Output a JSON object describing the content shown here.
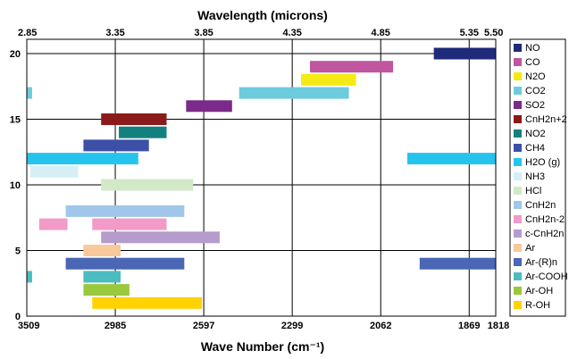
{
  "chart_data": {
    "type": "bar",
    "orientation": "horizontal-range",
    "title_top": "Wavelength (microns)",
    "xlabel_bottom": "Wave Number (cm⁻¹)",
    "ylabel": "",
    "x_range_microns": [
      2.85,
      5.5
    ],
    "y_range": [
      0,
      21
    ],
    "grid": true,
    "legend_placement": "right",
    "top_ticks": [
      {
        "value": 2.85,
        "label": "2.85"
      },
      {
        "value": 3.35,
        "label": "3.35"
      },
      {
        "value": 3.85,
        "label": "3.85"
      },
      {
        "value": 4.35,
        "label": "4.35"
      },
      {
        "value": 4.85,
        "label": "4.85"
      },
      {
        "value": 5.35,
        "label": "5.35"
      },
      {
        "value": 5.5,
        "label": "5.50"
      }
    ],
    "bottom_ticks": [
      {
        "value": 2.85,
        "label": "3509"
      },
      {
        "value": 3.35,
        "label": "2985"
      },
      {
        "value": 3.85,
        "label": "2597"
      },
      {
        "value": 4.35,
        "label": "2299"
      },
      {
        "value": 4.85,
        "label": "2062"
      },
      {
        "value": 5.35,
        "label": "1869"
      },
      {
        "value": 5.5,
        "label": "1818"
      }
    ],
    "y_ticks": [
      {
        "value": 0,
        "label": "0"
      },
      {
        "value": 5,
        "label": "5"
      },
      {
        "value": 10,
        "label": "10"
      },
      {
        "value": 15,
        "label": "15"
      },
      {
        "value": 20,
        "label": "20"
      }
    ],
    "series": [
      {
        "name": "NO",
        "color": "#1f2a7a",
        "y": 20,
        "ranges": [
          [
            5.15,
            5.5
          ]
        ]
      },
      {
        "name": "CO",
        "color": "#c0569f",
        "y": 19,
        "ranges": [
          [
            4.45,
            4.92
          ]
        ]
      },
      {
        "name": "N2O",
        "color": "#f5ea14",
        "y": 18,
        "ranges": [
          [
            4.4,
            4.71
          ]
        ]
      },
      {
        "name": "CO2",
        "color": "#6ccbdc",
        "y": 17,
        "ranges": [
          [
            2.85,
            2.88
          ],
          [
            4.05,
            4.67
          ]
        ]
      },
      {
        "name": "SO2",
        "color": "#7b2a8a",
        "y": 16,
        "ranges": [
          [
            3.75,
            4.01
          ]
        ]
      },
      {
        "name": "CnH2n+2",
        "color": "#8b1a1a",
        "y": 15,
        "ranges": [
          [
            3.27,
            3.64
          ]
        ]
      },
      {
        "name": "NO2",
        "color": "#138080",
        "y": 14,
        "ranges": [
          [
            3.37,
            3.64
          ]
        ]
      },
      {
        "name": "CH4",
        "color": "#3d50a8",
        "y": 13,
        "ranges": [
          [
            3.17,
            3.54
          ]
        ]
      },
      {
        "name": "H2O (g)",
        "color": "#25c4ef",
        "y": 12,
        "ranges": [
          [
            2.85,
            3.48
          ],
          [
            5.0,
            5.5
          ]
        ]
      },
      {
        "name": "NH3",
        "color": "#d6eef6",
        "y": 11,
        "ranges": [
          [
            2.87,
            3.14
          ]
        ]
      },
      {
        "name": "HCl",
        "color": "#d3e8c6",
        "y": 10,
        "ranges": [
          [
            3.27,
            3.79
          ]
        ]
      },
      {
        "name": "CnH2n",
        "color": "#a0c7ea",
        "y": 8,
        "ranges": [
          [
            3.07,
            3.74
          ]
        ]
      },
      {
        "name": "CnH2n-2",
        "color": "#f29ac8",
        "y": 7,
        "ranges": [
          [
            2.92,
            3.08
          ],
          [
            3.22,
            3.64
          ]
        ]
      },
      {
        "name": "c-CnH2n",
        "color": "#b59ccc",
        "y": 6,
        "ranges": [
          [
            3.27,
            3.94
          ]
        ]
      },
      {
        "name": "Ar",
        "color": "#f7c99b",
        "y": 5,
        "ranges": [
          [
            3.17,
            3.38
          ]
        ]
      },
      {
        "name": "Ar-(R)n",
        "color": "#4a66b4",
        "y": 4,
        "ranges": [
          [
            3.07,
            3.74
          ],
          [
            5.07,
            5.5
          ]
        ]
      },
      {
        "name": "Ar-COOH",
        "color": "#4bbdc0",
        "y": 3,
        "ranges": [
          [
            2.85,
            2.88
          ],
          [
            3.17,
            3.38
          ]
        ]
      },
      {
        "name": "Ar-OH",
        "color": "#9ac83c",
        "y": 2,
        "ranges": [
          [
            3.17,
            3.43
          ]
        ]
      },
      {
        "name": "R-OH",
        "color": "#ffd200",
        "y": 1,
        "ranges": [
          [
            3.22,
            3.84
          ]
        ]
      }
    ]
  }
}
